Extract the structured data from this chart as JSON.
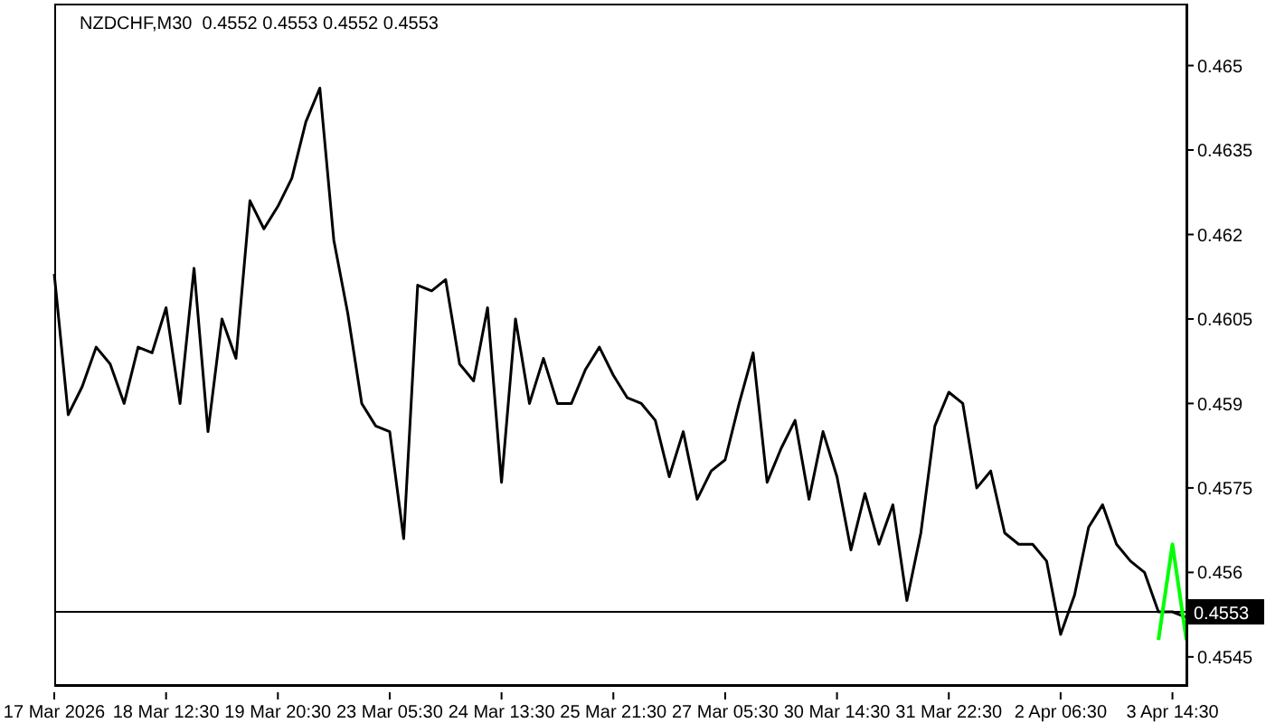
{
  "chart_data": {
    "type": "line",
    "title": "NZDCHF,M30  0.4552 0.4553 0.4552 0.4553",
    "marker": "none",
    "line_style": "solid",
    "categories": [
      "17 Mar 2026",
      null,
      null,
      null,
      null,
      null,
      null,
      null,
      "18 Mar 12:30",
      null,
      null,
      null,
      null,
      null,
      null,
      null,
      "19 Mar 20:30",
      null,
      null,
      null,
      null,
      null,
      null,
      null,
      "23 Mar 05:30",
      null,
      null,
      null,
      null,
      null,
      null,
      null,
      "24 Mar 13:30",
      null,
      null,
      null,
      null,
      null,
      null,
      null,
      "25 Mar 21:30",
      null,
      null,
      null,
      null,
      null,
      null,
      null,
      "27 Mar 05:30",
      null,
      null,
      null,
      null,
      null,
      null,
      null,
      "30 Mar 14:30",
      null,
      null,
      null,
      null,
      null,
      null,
      null,
      "31 Mar 22:30",
      null,
      null,
      null,
      null,
      null,
      null,
      null,
      "2 Apr 06:30",
      null,
      null,
      null,
      null,
      null,
      null,
      null,
      "3 Apr 14:30",
      null
    ],
    "ylim": [
      0.454,
      0.4661
    ],
    "yticks": [
      0.4545,
      0.456,
      0.4575,
      0.459,
      0.4605,
      0.462,
      0.4635,
      0.465
    ],
    "ref_lines": [
      {
        "axis": "y",
        "value": 0.4553,
        "label": "0.4553",
        "color": "#000000"
      }
    ],
    "series": [
      {
        "color": "#000000",
        "values": [
          0.4613,
          0.4588,
          0.4593,
          0.46,
          0.4597,
          0.459,
          0.46,
          0.4599,
          0.4607,
          0.459,
          0.4614,
          0.4585,
          0.4605,
          0.4598,
          0.4626,
          0.4621,
          0.4625,
          0.463,
          0.464,
          0.4646,
          0.4619,
          0.4606,
          0.459,
          0.4586,
          0.4585,
          0.4566,
          0.4611,
          0.461,
          0.4612,
          0.4597,
          0.4594,
          0.4607,
          0.4576,
          0.4605,
          0.459,
          0.4598,
          0.459,
          0.459,
          0.4596,
          0.46,
          0.4595,
          0.4591,
          0.459,
          0.4587,
          0.4577,
          0.4585,
          0.4573,
          0.4578,
          0.458,
          0.459,
          0.4599,
          0.4576,
          0.4582,
          0.4587,
          0.4573,
          0.4585,
          0.4577,
          0.4564,
          0.4574,
          0.4565,
          0.4572,
          0.4555,
          0.4567,
          0.4586,
          0.4592,
          0.459,
          0.4575,
          0.4578,
          0.4567,
          0.4565,
          0.4565,
          0.4562,
          0.4549,
          0.4556,
          0.4568,
          0.4572,
          0.4565,
          0.4562,
          0.456,
          0.4553,
          0.4553,
          0.4552
        ]
      },
      {
        "color": "#00ff00",
        "values": [
          null,
          null,
          null,
          null,
          null,
          null,
          null,
          null,
          null,
          null,
          null,
          null,
          null,
          null,
          null,
          null,
          null,
          null,
          null,
          null,
          null,
          null,
          null,
          null,
          null,
          null,
          null,
          null,
          null,
          null,
          null,
          null,
          null,
          null,
          null,
          null,
          null,
          null,
          null,
          null,
          null,
          null,
          null,
          null,
          null,
          null,
          null,
          null,
          null,
          null,
          null,
          null,
          null,
          null,
          null,
          null,
          null,
          null,
          null,
          null,
          null,
          null,
          null,
          null,
          null,
          null,
          null,
          null,
          null,
          null,
          null,
          null,
          null,
          null,
          null,
          null,
          null,
          null,
          null,
          0.4548,
          0.4565,
          0.4548
        ]
      }
    ]
  }
}
